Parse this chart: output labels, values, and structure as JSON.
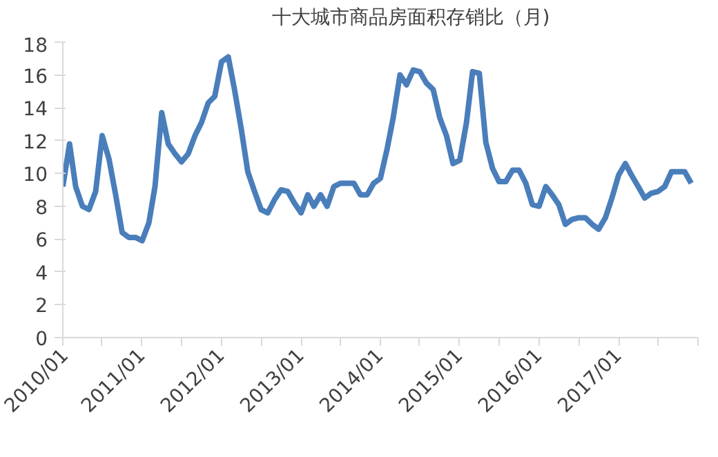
{
  "chart_data": {
    "type": "line",
    "x": [
      "2010-01",
      "2010-02",
      "2010-03",
      "2010-04",
      "2010-05",
      "2010-06",
      "2010-07",
      "2010-08",
      "2010-09",
      "2010-10",
      "2010-11",
      "2010-12",
      "2011-01",
      "2011-02",
      "2011-03",
      "2011-04",
      "2011-05",
      "2011-06",
      "2011-07",
      "2011-08",
      "2011-09",
      "2011-10",
      "2011-11",
      "2011-12",
      "2012-01",
      "2012-02",
      "2012-03",
      "2012-04",
      "2012-05",
      "2012-06",
      "2012-07",
      "2012-08",
      "2012-09",
      "2012-10",
      "2012-11",
      "2012-12",
      "2013-01",
      "2013-02",
      "2013-03",
      "2013-04",
      "2013-05",
      "2013-06",
      "2013-07",
      "2013-08",
      "2013-09",
      "2013-10",
      "2013-11",
      "2013-12",
      "2014-01",
      "2014-02",
      "2014-03",
      "2014-04",
      "2014-05",
      "2014-06",
      "2014-07",
      "2014-08",
      "2014-09",
      "2014-10",
      "2014-11",
      "2014-12",
      "2015-01",
      "2015-02",
      "2015-03",
      "2015-04",
      "2015-05",
      "2015-06",
      "2015-07",
      "2015-08",
      "2015-09",
      "2015-10",
      "2015-11",
      "2015-12",
      "2016-01",
      "2016-02",
      "2016-03",
      "2016-04",
      "2016-05",
      "2016-06",
      "2016-07",
      "2016-08",
      "2016-09",
      "2016-10",
      "2016-11",
      "2016-12",
      "2017-01",
      "2017-02",
      "2017-03",
      "2017-04",
      "2017-05",
      "2017-06",
      "2017-07",
      "2017-08",
      "2017-09",
      "2017-10",
      "2017-11",
      "2017-12"
    ],
    "series": [
      {
        "name": "十大城市商品房面积存销比（月)",
        "color": "#4a7ebb",
        "values": [
          9.2,
          11.8,
          9.2,
          8.0,
          7.8,
          8.9,
          12.3,
          10.9,
          8.7,
          6.4,
          6.1,
          6.1,
          5.9,
          7.0,
          9.2,
          13.7,
          11.8,
          11.2,
          10.7,
          11.2,
          12.3,
          13.1,
          14.3,
          14.7,
          16.8,
          17.1,
          15.1,
          12.7,
          10.1,
          8.9,
          7.8,
          7.6,
          8.4,
          9.0,
          8.9,
          8.2,
          7.6,
          8.7,
          8.0,
          8.7,
          8.0,
          9.2,
          9.4,
          9.4,
          9.4,
          8.7,
          8.7,
          9.4,
          9.7,
          11.5,
          13.4,
          16.0,
          15.4,
          16.3,
          16.2,
          15.5,
          15.1,
          13.4,
          12.3,
          10.6,
          10.8,
          13.1,
          16.2,
          16.1,
          11.9,
          10.3,
          9.5,
          9.5,
          10.2,
          10.2,
          9.4,
          8.1,
          8.0,
          9.2,
          8.7,
          8.1,
          6.9,
          7.2,
          7.3,
          7.3,
          6.9,
          6.6,
          7.3,
          8.5,
          9.9,
          10.6,
          9.9,
          9.2,
          8.5,
          8.8,
          8.9,
          9.2,
          10.1,
          10.1,
          10.1,
          9.4
        ]
      }
    ],
    "xlim": [
      "2010-01",
      "2018-01"
    ],
    "xticks": [
      {
        "value": "2010-01",
        "label": "2010/01"
      },
      {
        "value": "2010-07",
        "label": null
      },
      {
        "value": "2011-01",
        "label": "2011/01"
      },
      {
        "value": "2011-07",
        "label": null
      },
      {
        "value": "2012-01",
        "label": "2012/01"
      },
      {
        "value": "2012-07",
        "label": null
      },
      {
        "value": "2013-01",
        "label": "2013/01"
      },
      {
        "value": "2013-07",
        "label": null
      },
      {
        "value": "2014-01",
        "label": "2014/01"
      },
      {
        "value": "2014-07",
        "label": null
      },
      {
        "value": "2015-01",
        "label": "2015/01"
      },
      {
        "value": "2015-07",
        "label": null
      },
      {
        "value": "2016-01",
        "label": "2016/01"
      },
      {
        "value": "2016-07",
        "label": null
      },
      {
        "value": "2017-01",
        "label": "2017/01"
      },
      {
        "value": "2017-07",
        "label": null
      },
      {
        "value": "2018-01",
        "label": null
      }
    ],
    "ylim": [
      0,
      18
    ],
    "yticks": [
      0,
      2,
      4,
      6,
      8,
      10,
      12,
      14,
      16,
      18
    ],
    "grid": false,
    "legend": "top",
    "marker": "none",
    "line_style": "solid"
  }
}
